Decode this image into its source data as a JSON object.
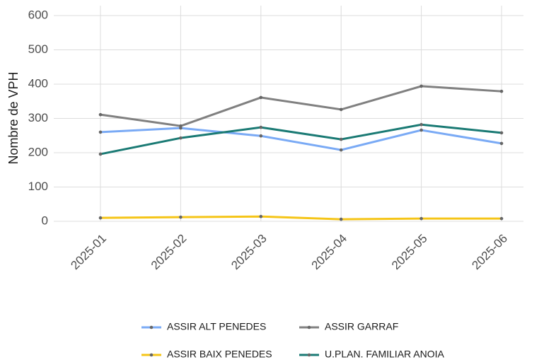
{
  "chart_data": {
    "type": "line",
    "y_label": "Nombre de VPH",
    "categories": [
      "2025-01",
      "2025-02",
      "2025-03",
      "2025-04",
      "2025-05",
      "2025-06"
    ],
    "series": [
      {
        "name": "ASSIR ALT PENEDES",
        "color": "#7aaaf5",
        "values": [
          260,
          272,
          249,
          208,
          266,
          227
        ]
      },
      {
        "name": "ASSIR GARRAF",
        "color": "#808080",
        "values": [
          311,
          278,
          361,
          326,
          394,
          379
        ]
      },
      {
        "name": "ASSIR BAIX PENEDES",
        "color": "#f5c518",
        "values": [
          10,
          12,
          14,
          6,
          8,
          8
        ]
      },
      {
        "name": "U.PLAN. FAMILIAR ANOIA",
        "color": "#1a7a74",
        "values": [
          196,
          243,
          274,
          239,
          282,
          258
        ]
      }
    ],
    "ylim": [
      0,
      600
    ],
    "yticks": [
      0,
      100,
      200,
      300,
      400,
      500,
      600
    ],
    "grid": true,
    "legend": "bottom"
  }
}
